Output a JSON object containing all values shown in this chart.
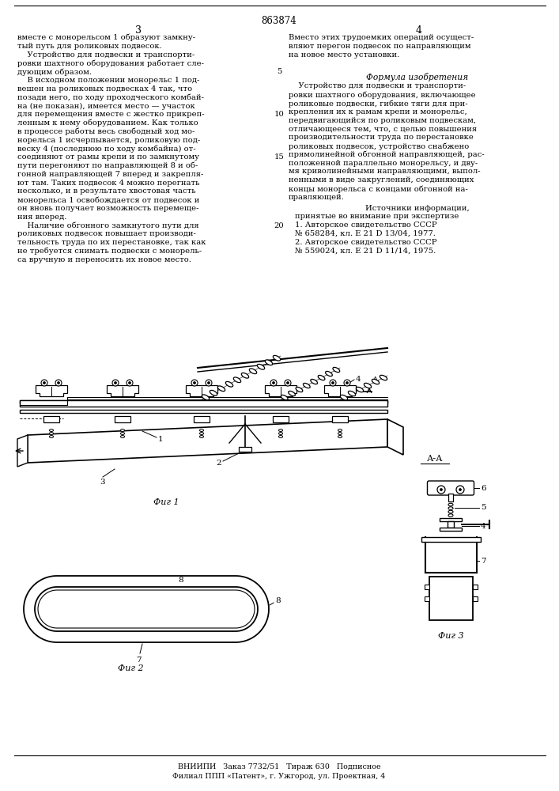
{
  "patent_number": "863874",
  "page_left": "3",
  "page_right": "4",
  "bg_color": "#ffffff",
  "text_color": "#000000",
  "font_size_body": 7.2,
  "font_size_title": 8.5,
  "font_size_page": 9,
  "left_column_text": [
    "вместе с монорельсом 1 образуют замкну-",
    "тый путь для роликовых подвесок.",
    "    Устройство для подвески и транспорти-",
    "ровки шахтного оборудования работает сле-",
    "дующим образом.",
    "    В исходном положении монорельс 1 под-",
    "вешен на роликовых подвесках 4 так, что",
    "позади него, по ходу проходческого комбай-",
    "на (не показан), имеется место — участок",
    "для перемещения вместе с жестко прикреп-",
    "ленным к нему оборудованием. Как только",
    "в процессе работы весь свободный ход мо-",
    "норельса 1 исчерпывается, роликовую под-",
    "веску 4 (последнюю по ходу комбайна) от-",
    "соединяют от рамы крепи и по замкнутому",
    "пути перегоняют по направляющей 8 и об-",
    "гонной направляющей 7 вперед и закрепля-",
    "ют там. Таких подвесок 4 можно перегнать",
    "несколько, и в результате хвостовая часть",
    "монорельса 1 освобождается от подвесок и",
    "он вновь получает возможность перемеще-",
    "ния вперед.",
    "    Наличие обгонного замкнутого пути для",
    "роликовых подвесок повышает производи-",
    "тельность труда по их перестановке, так как",
    "не требуется снимать подвески с монорель-",
    "са вручную и переносить их новое место."
  ],
  "right_column_text_top": [
    "Вместо этих трудоемких операций осущест-",
    "вляют перегон подвесок по направляющим",
    "на новое место установки."
  ],
  "formula_title": "Формула изобретения",
  "formula_text": [
    "    Устройство для подвески и транспорти-",
    "ровки шахтного оборудования, включающее",
    "роликовые подвески, гибкие тяги для при-",
    "крепления их к рамам крепи и монорельс,",
    "передвигающийся по роликовым подвескам,",
    "отличающееся тем, что, с целью повышения",
    "производительности труда по перестановке",
    "роликовых подвесок, устройство снабжено",
    "прямолинейной обгонной направляющей, рас-",
    "положенной параллельно монорельсу, и дву-",
    "мя криволинейными направляющими, выпол-",
    "ненными в виде закруглений, соединяющих",
    "концы монорельса с концами обгонной на-",
    "правляющей."
  ],
  "sources_title": "Источники информации,",
  "sources_text": [
    "принятые во внимание при экспертизе",
    "1. Авторское свидетельство СССР",
    "№ 658284, кл. Е 21 D 13/04, 1977.",
    "2. Авторское свидетельство СССР",
    "№ 559024, кл. Е 21 D 11/14, 1975."
  ],
  "fig1_label": "Фиг 1",
  "fig2_label": "Фиг 2",
  "fig3_label": "Фиг 3",
  "fig3_section_label": "А-А",
  "bottom_text": "ВНИИПИ   Заказ 7732/51   Тираж 630   Подписное",
  "bottom_text2": "Филиал ППП «Патент», г. Ужгород, ул. Проектная, 4"
}
